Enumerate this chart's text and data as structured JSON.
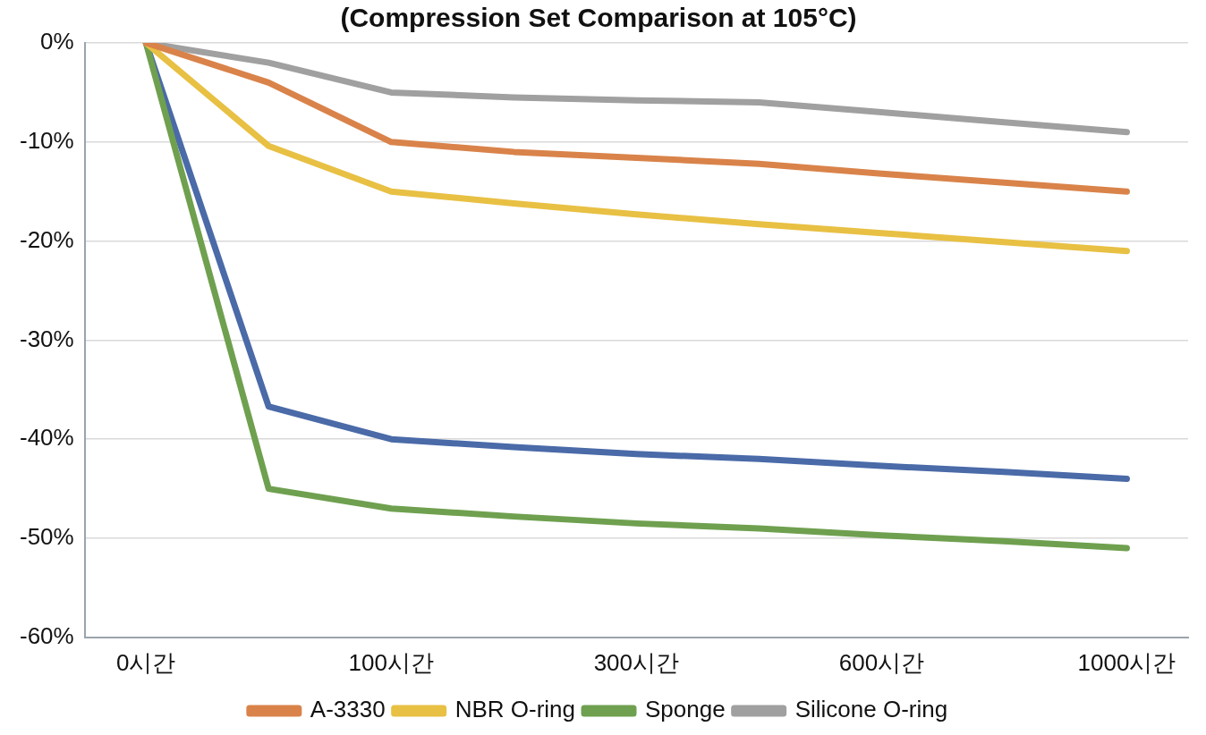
{
  "chart_data": {
    "type": "line",
    "title": "(Compression Set Comparison at 105°C)",
    "categories": [
      "0시간",
      null,
      "100시간",
      null,
      "300시간",
      null,
      "600시간",
      null,
      "1000시간"
    ],
    "series": [
      {
        "name": "A-3330",
        "color": "#d9834a",
        "values": [
          0,
          -4,
          -10,
          -11,
          -11.6,
          -12.2,
          -13.2,
          -14.1,
          -15
        ]
      },
      {
        "name": "NBR O-ring",
        "color": "#e8c043",
        "values": [
          0,
          -10.4,
          -15,
          -16.2,
          -17.3,
          -18.3,
          -19.2,
          -20.1,
          -21
        ]
      },
      {
        "name": "Sponge",
        "color": "#6fa04f",
        "values": [
          0,
          -45,
          -47,
          -47.8,
          -48.5,
          -49,
          -49.7,
          -50.3,
          -51
        ]
      },
      {
        "name": "Silicone O-ring",
        "color": "#a0a0a0",
        "values": [
          0,
          -2,
          -5,
          -5.5,
          -5.8,
          -6,
          -7,
          -8,
          -9
        ]
      },
      {
        "color": "#4a6aa8",
        "values": [
          0,
          -36.7,
          -40,
          -40.8,
          -41.5,
          -42,
          -42.7,
          -43.3,
          -44
        ]
      }
    ],
    "ylim": [
      -60,
      0
    ],
    "yticks": [
      {
        "value": -60,
        "label": "-60%"
      },
      {
        "value": -50,
        "label": "-50%"
      },
      {
        "value": -40,
        "label": "-40%"
      },
      {
        "value": -30,
        "label": "-30%"
      },
      {
        "value": -20,
        "label": "-20%"
      },
      {
        "value": -10,
        "label": "-10%"
      },
      {
        "value": 0,
        "label": "0%"
      }
    ],
    "grid": "y",
    "legend": "bottom",
    "marker": "none",
    "line_style": "solid"
  }
}
